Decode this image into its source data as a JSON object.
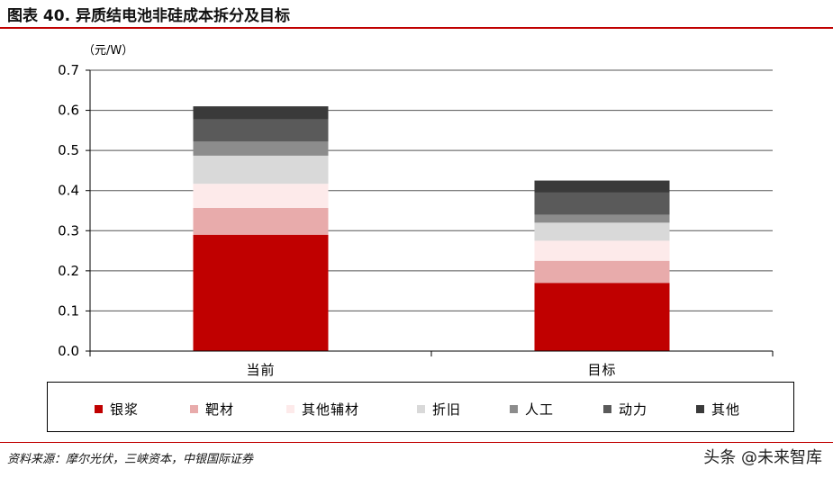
{
  "title": "图表 40. 异质结电池非硅成本拆分及目标",
  "source": "资料来源：摩尔光伏，三峡资本，中银国际证券",
  "watermark": "头条 @未来智库",
  "chart_data": {
    "type": "bar",
    "stacked": true,
    "unit_label": "（元/W）",
    "categories": [
      "当前",
      "目标"
    ],
    "ylim": [
      0,
      0.7
    ],
    "yticks": [
      "0.0",
      "0.1",
      "0.2",
      "0.3",
      "0.4",
      "0.5",
      "0.6",
      "0.7"
    ],
    "grid": true,
    "legend_position": "bottom",
    "series": [
      {
        "name": "银浆",
        "color": "#c00000",
        "values": [
          0.29,
          0.17
        ]
      },
      {
        "name": "靶材",
        "color": "#e8abab",
        "values": [
          0.067,
          0.055
        ]
      },
      {
        "name": "其他辅材",
        "color": "#fdeaea",
        "values": [
          0.06,
          0.05
        ]
      },
      {
        "name": "折旧",
        "color": "#d9d9d9",
        "values": [
          0.07,
          0.045
        ]
      },
      {
        "name": "人工",
        "color": "#8c8c8c",
        "values": [
          0.035,
          0.02
        ]
      },
      {
        "name": "动力",
        "color": "#5a5a5a",
        "values": [
          0.055,
          0.055
        ]
      },
      {
        "name": "其他",
        "color": "#3a3a3a",
        "values": [
          0.033,
          0.03
        ]
      }
    ]
  }
}
